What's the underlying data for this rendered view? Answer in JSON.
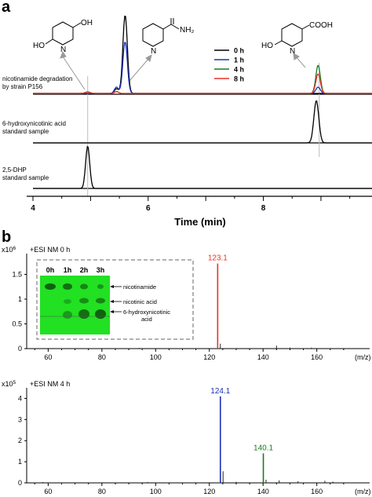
{
  "panel_a": {
    "label": "a",
    "trace_labels": [
      [
        "nicotinamide degradation",
        "by strain P156"
      ],
      [
        "6-hydroxynicotinic acid",
        "standard sample"
      ],
      [
        "2,5-DHP",
        "standard sample"
      ]
    ],
    "legend": [
      {
        "name": "0 h",
        "color": "#000000"
      },
      {
        "name": "1 h",
        "color": "#1f2fb8"
      },
      {
        "name": "4 h",
        "color": "#1e7a1e"
      },
      {
        "name": "8 h",
        "color": "#e8332a"
      }
    ],
    "structures": {
      "dhp_oh1": "OH",
      "dhp_oh2": "HO",
      "dhp_n": "N",
      "nam_group": "NH₂",
      "nam_n": "N",
      "hna_cooh": "COOH",
      "hna_oh": "HO",
      "hna_n": "N"
    }
  },
  "panel_b": {
    "label": "b",
    "tlc": {
      "lanes": [
        "0h",
        "1h",
        "2h",
        "3h"
      ],
      "labels": [
        "nicotinamide",
        "nicotinic acid",
        "6-hydroxynicotinic",
        "acid"
      ],
      "background": "#22e022"
    }
  },
  "chart_data": [
    {
      "type": "line",
      "xlabel": "Time (min)",
      "x_ticks": [
        4,
        6,
        8
      ],
      "xlim": [
        4,
        9.9
      ],
      "series": [
        {
          "name": "0 h",
          "color": "#000000",
          "peaks": [
            {
              "x": 5.6,
              "height": 1.0
            }
          ]
        },
        {
          "name": "1 h",
          "color": "#1f2fb8",
          "peaks": [
            {
              "x": 5.6,
              "height": 0.66
            },
            {
              "x": 8.95,
              "height": 0.08
            }
          ]
        },
        {
          "name": "4 h",
          "color": "#1e7a1e",
          "peaks": [
            {
              "x": 8.95,
              "height": 0.36
            }
          ]
        },
        {
          "name": "8 h",
          "color": "#e8332a",
          "peaks": [
            {
              "x": 8.95,
              "height": 0.25
            }
          ]
        },
        {
          "name": "6-hydroxynicotinic acid standard sample",
          "color": "#000000",
          "peaks": [
            {
              "x": 8.92,
              "height": 1.0
            }
          ]
        },
        {
          "name": "2,5-DHP standard sample",
          "color": "#000000",
          "peaks": [
            {
              "x": 4.95,
              "height": 1.0
            }
          ]
        }
      ]
    },
    {
      "type": "bar",
      "title": "+ESI  NM  0 h",
      "xlabel": "(m/z)",
      "y_exponent_label": "x10",
      "y_exponent_power": "6",
      "xlim": [
        52,
        175
      ],
      "ylim": [
        0,
        1.92
      ],
      "x_ticks": [
        "60",
        "80",
        "100",
        "120",
        "140",
        "160"
      ],
      "y_ticks": [
        "0",
        "0.5",
        "1",
        "1.5"
      ],
      "peak_labels": [
        {
          "mz": 123.1,
          "text": "123.1",
          "color": "#e8332a"
        }
      ],
      "peaks": [
        {
          "mz": 123.1,
          "intensity": 1.72,
          "color": "#e8332a"
        },
        {
          "mz": 124.1,
          "intensity": 0.1
        },
        {
          "mz": 145.0,
          "intensity": 0.06
        },
        {
          "mz": 150.0,
          "intensity": 0.02
        },
        {
          "mz": 158.0,
          "intensity": 0.02
        },
        {
          "mz": 60.0,
          "intensity": 0.01
        },
        {
          "mz": 94.0,
          "intensity": 0.015
        }
      ]
    },
    {
      "type": "bar",
      "title": "+ESI  NM  4 h",
      "xlabel": "(m/z)",
      "y_exponent_label": "x10",
      "y_exponent_power": "5",
      "xlim": [
        52,
        175
      ],
      "ylim": [
        0,
        4.5
      ],
      "x_ticks": [
        "60",
        "80",
        "100",
        "120",
        "140",
        "160"
      ],
      "y_ticks": [
        "0",
        "1",
        "2",
        "3",
        "4"
      ],
      "peak_labels": [
        {
          "mz": 124.1,
          "text": "124.1",
          "color": "#1f2fb8"
        },
        {
          "mz": 140.1,
          "text": "140.1",
          "color": "#1e7a1e"
        }
      ],
      "peaks": [
        {
          "mz": 124.1,
          "intensity": 4.1,
          "color": "#1f2fb8"
        },
        {
          "mz": 125.1,
          "intensity": 0.55
        },
        {
          "mz": 140.1,
          "intensity": 1.4,
          "color": "#1e7a1e"
        },
        {
          "mz": 141.1,
          "intensity": 0.15
        },
        {
          "mz": 146.0,
          "intensity": 0.12
        },
        {
          "mz": 153.0,
          "intensity": 0.08
        },
        {
          "mz": 163.0,
          "intensity": 0.1
        },
        {
          "mz": 166.0,
          "intensity": 0.06
        },
        {
          "mz": 130.0,
          "intensity": 0.05
        },
        {
          "mz": 58.0,
          "intensity": 0.04
        },
        {
          "mz": 97.0,
          "intensity": 0.04
        }
      ]
    }
  ]
}
